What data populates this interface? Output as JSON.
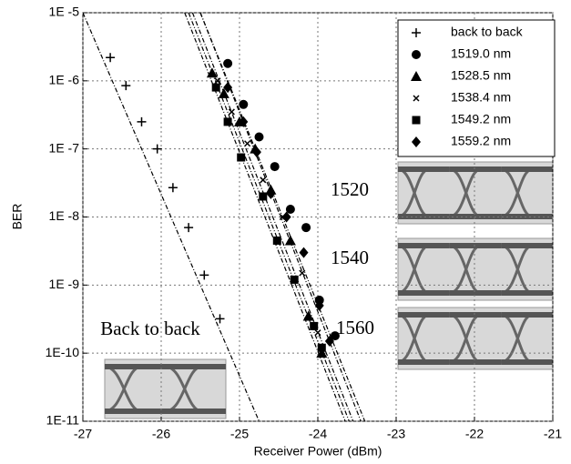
{
  "chart_data": {
    "type": "scatter",
    "xlabel": "Receiver Power (dBm)",
    "ylabel": "BER",
    "xlim": [
      -27,
      -21
    ],
    "xticks": [
      -27,
      -26,
      -25,
      -24,
      -23,
      -22,
      -21
    ],
    "ylim": [
      1e-11,
      1e-05
    ],
    "log_y": true,
    "grid": true,
    "legend": "upper right",
    "yticks": [
      {
        "value": 1e-11,
        "label": "1E-11"
      },
      {
        "value": 1e-10,
        "label": "1E-10"
      },
      {
        "value": 1e-09,
        "label": "1E -9"
      },
      {
        "value": 1e-08,
        "label": "1E -8"
      },
      {
        "value": 1e-07,
        "label": "1E -7"
      },
      {
        "value": 1e-06,
        "label": "1E -6"
      },
      {
        "value": 1e-05,
        "label": "1E -5"
      }
    ],
    "annotations": [
      "1520",
      "1540",
      "1560",
      "Back to back"
    ],
    "series": [
      {
        "name": "back to back",
        "marker": "plus",
        "color": "#000000",
        "x": [
          -26.65,
          -26.45,
          -26.25,
          -26.05,
          -25.85,
          -25.65,
          -25.45,
          -25.25
        ],
        "values": [
          2.2e-06,
          8.5e-07,
          2.5e-07,
          1e-07,
          2.7e-08,
          7e-09,
          1.4e-09,
          3.2e-10
        ],
        "fit_x": [
          -27.0,
          -24.75
        ],
        "fit_y": [
          1e-05,
          1e-11
        ]
      },
      {
        "name": "1519.0 nm",
        "marker": "circle",
        "color": "#000000",
        "x": [
          -25.15,
          -24.95,
          -24.75,
          -24.55,
          -24.35,
          -24.15,
          -23.98,
          -23.78
        ],
        "values": [
          1.8e-06,
          4.5e-07,
          1.5e-07,
          5.5e-08,
          1.3e-08,
          7e-09,
          6e-10,
          1.8e-10
        ],
        "fit_x": [
          -25.5,
          -23.4
        ],
        "fit_y": [
          1e-05,
          1e-11
        ]
      },
      {
        "name": "1528.5 nm",
        "marker": "triangle",
        "color": "#000000",
        "x": [
          -25.35,
          -25.2,
          -25.0,
          -24.8,
          -24.6,
          -24.35,
          -24.12,
          -23.95
        ],
        "values": [
          1.3e-06,
          6.5e-07,
          2.5e-07,
          1e-07,
          2.5e-08,
          4.5e-09,
          3.5e-10,
          1e-10
        ],
        "fit_x": [
          -25.65,
          -23.6
        ],
        "fit_y": [
          1e-05,
          1e-11
        ]
      },
      {
        "name": "1538.4 nm",
        "marker": "x",
        "color": "#000000",
        "x": [
          -25.28,
          -25.1,
          -24.9,
          -24.7,
          -24.45,
          -24.2,
          -24.0
        ],
        "values": [
          1e-06,
          3.5e-07,
          1.2e-07,
          3.5e-08,
          1e-08,
          1.5e-09,
          2e-10
        ],
        "fit_x": [
          -25.6,
          -23.55
        ],
        "fit_y": [
          1e-05,
          1e-11
        ]
      },
      {
        "name": "1549.2 nm",
        "marker": "square",
        "color": "#000000",
        "x": [
          -25.3,
          -25.15,
          -24.98,
          -24.7,
          -24.52,
          -24.3,
          -24.05,
          -23.95
        ],
        "values": [
          8e-07,
          2.5e-07,
          7.5e-08,
          2e-08,
          4.5e-09,
          1.2e-09,
          2.5e-10,
          1.2e-10
        ],
        "fit_x": [
          -25.7,
          -23.65
        ],
        "fit_y": [
          1e-05,
          1e-11
        ]
      },
      {
        "name": "1559.2 nm",
        "marker": "diamond",
        "color": "#000000",
        "x": [
          -25.15,
          -24.95,
          -24.78,
          -24.6,
          -24.4,
          -24.18,
          -23.98,
          -23.85
        ],
        "values": [
          8e-07,
          2.5e-07,
          9e-08,
          2.2e-08,
          1e-08,
          3e-09,
          5e-10,
          1.5e-10
        ],
        "fit_x": [
          -25.5,
          -23.45
        ],
        "fit_y": [
          1e-05,
          1e-11
        ]
      }
    ]
  }
}
